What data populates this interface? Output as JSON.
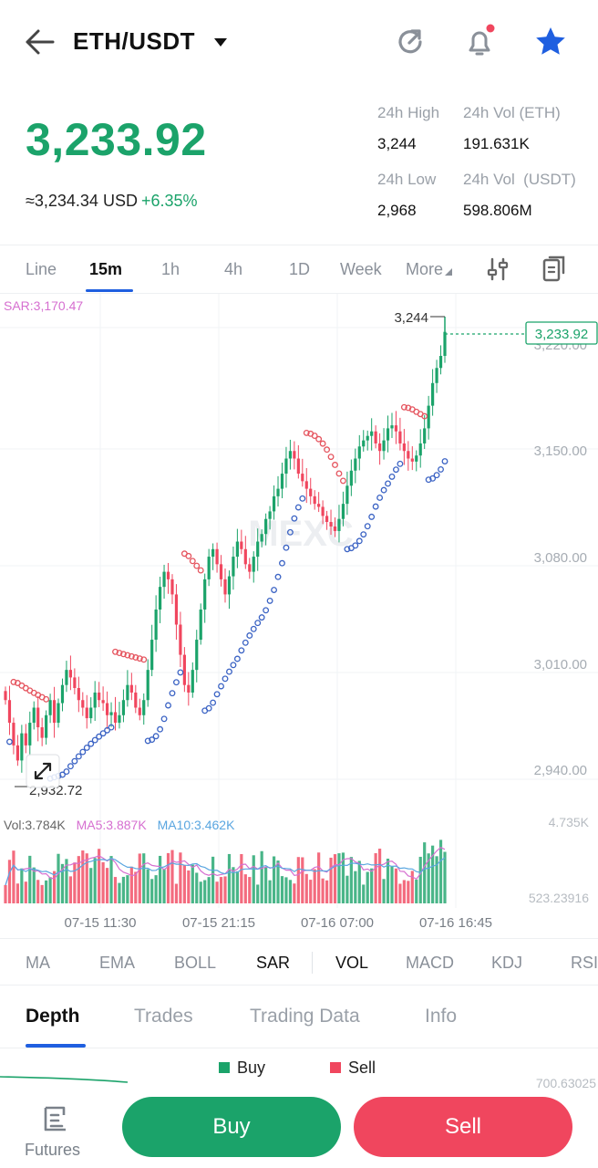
{
  "header": {
    "pair": "ETH/USDT",
    "icons": [
      "back-arrow-icon",
      "caret-down-icon",
      "refresh-icon",
      "bell-icon",
      "star-icon"
    ],
    "accent": "#1f5fe0"
  },
  "ticker": {
    "price": "3,233.92",
    "fiat": "≈3,234.34 USD",
    "change": "+6.35%",
    "high_label": "24h High",
    "high": "3,244",
    "low_label": "24h Low",
    "low": "2,968",
    "vol_eth_label": "24h Vol (ETH)",
    "vol_eth": "191.631K",
    "vol_usdt_label": "24h Vol  (USDT)",
    "vol_usdt": "598.806M",
    "up_color": "#1ba36a",
    "down_color": "#f0465e"
  },
  "timeframes": {
    "items": [
      "Line",
      "15m",
      "1h",
      "4h",
      "1D",
      "Week",
      "More"
    ],
    "active": "15m",
    "icons": [
      "sliders-icon",
      "clipboard-icon"
    ]
  },
  "chart": {
    "sar_label": "SAR:3,170.47",
    "current_price_tag": "3,233.92",
    "high_marker": "3,244",
    "low_marker": "2,932.72",
    "y_ticks": [
      "3,220.00",
      "3,150.00",
      "3,080.00",
      "3,010.00",
      "2,940.00"
    ],
    "watermark": "MEXC",
    "vol_label": "Vol:3.784K",
    "ma5_label": "MA5:3.887K",
    "ma10_label": "MA10:3.462K",
    "vol_max": "4.735K",
    "vol_min": "523.23916",
    "x_ticks": [
      "07-15 11:30",
      "07-15 21:15",
      "07-16 07:00",
      "07-16 16:45"
    ]
  },
  "chart_data": {
    "type": "candlestick",
    "ylim": [
      2932.72,
      3244
    ],
    "close": [
      2990,
      2975,
      2960,
      2950,
      2968,
      2960,
      2975,
      2985,
      2972,
      2965,
      2980,
      2990,
      2975,
      2988,
      3000,
      3010,
      3005,
      2998,
      2990,
      2985,
      2978,
      2985,
      2995,
      2990,
      2988,
      2980,
      2982,
      2975,
      2980,
      2990,
      3000,
      2995,
      2985,
      2980,
      2990,
      3010,
      3030,
      3050,
      3065,
      3075,
      3070,
      3060,
      3040,
      3020,
      3000,
      2995,
      3010,
      3030,
      3050,
      3070,
      3085,
      3090,
      3080,
      3070,
      3060,
      3072,
      3085,
      3095,
      3090,
      3080,
      3075,
      3085,
      3095,
      3100,
      3110,
      3115,
      3125,
      3130,
      3140,
      3150,
      3155,
      3150,
      3140,
      3135,
      3130,
      3125,
      3120,
      3118,
      3112,
      3108,
      3105,
      3102,
      3110,
      3120,
      3132,
      3142,
      3150,
      3158,
      3162,
      3165,
      3168,
      3160,
      3155,
      3162,
      3170,
      3172,
      3168,
      3160,
      3155,
      3150,
      3148,
      3152,
      3160,
      3170,
      3185,
      3200,
      3210,
      3218,
      3233.92
    ]
  },
  "indicators": {
    "items": [
      "MA",
      "EMA",
      "BOLL",
      "SAR",
      "VOL",
      "MACD",
      "KDJ",
      "RSI"
    ],
    "active": [
      "SAR",
      "VOL"
    ]
  },
  "depth_tabs": {
    "items": [
      "Depth",
      "Trades",
      "Trading Data",
      "Info"
    ],
    "active": "Depth",
    "buy_legend": "Buy",
    "sell_legend": "Sell",
    "depth_value": "700.63025"
  },
  "bottom": {
    "futures_label": "Futures",
    "buy_label": "Buy",
    "sell_label": "Sell"
  }
}
